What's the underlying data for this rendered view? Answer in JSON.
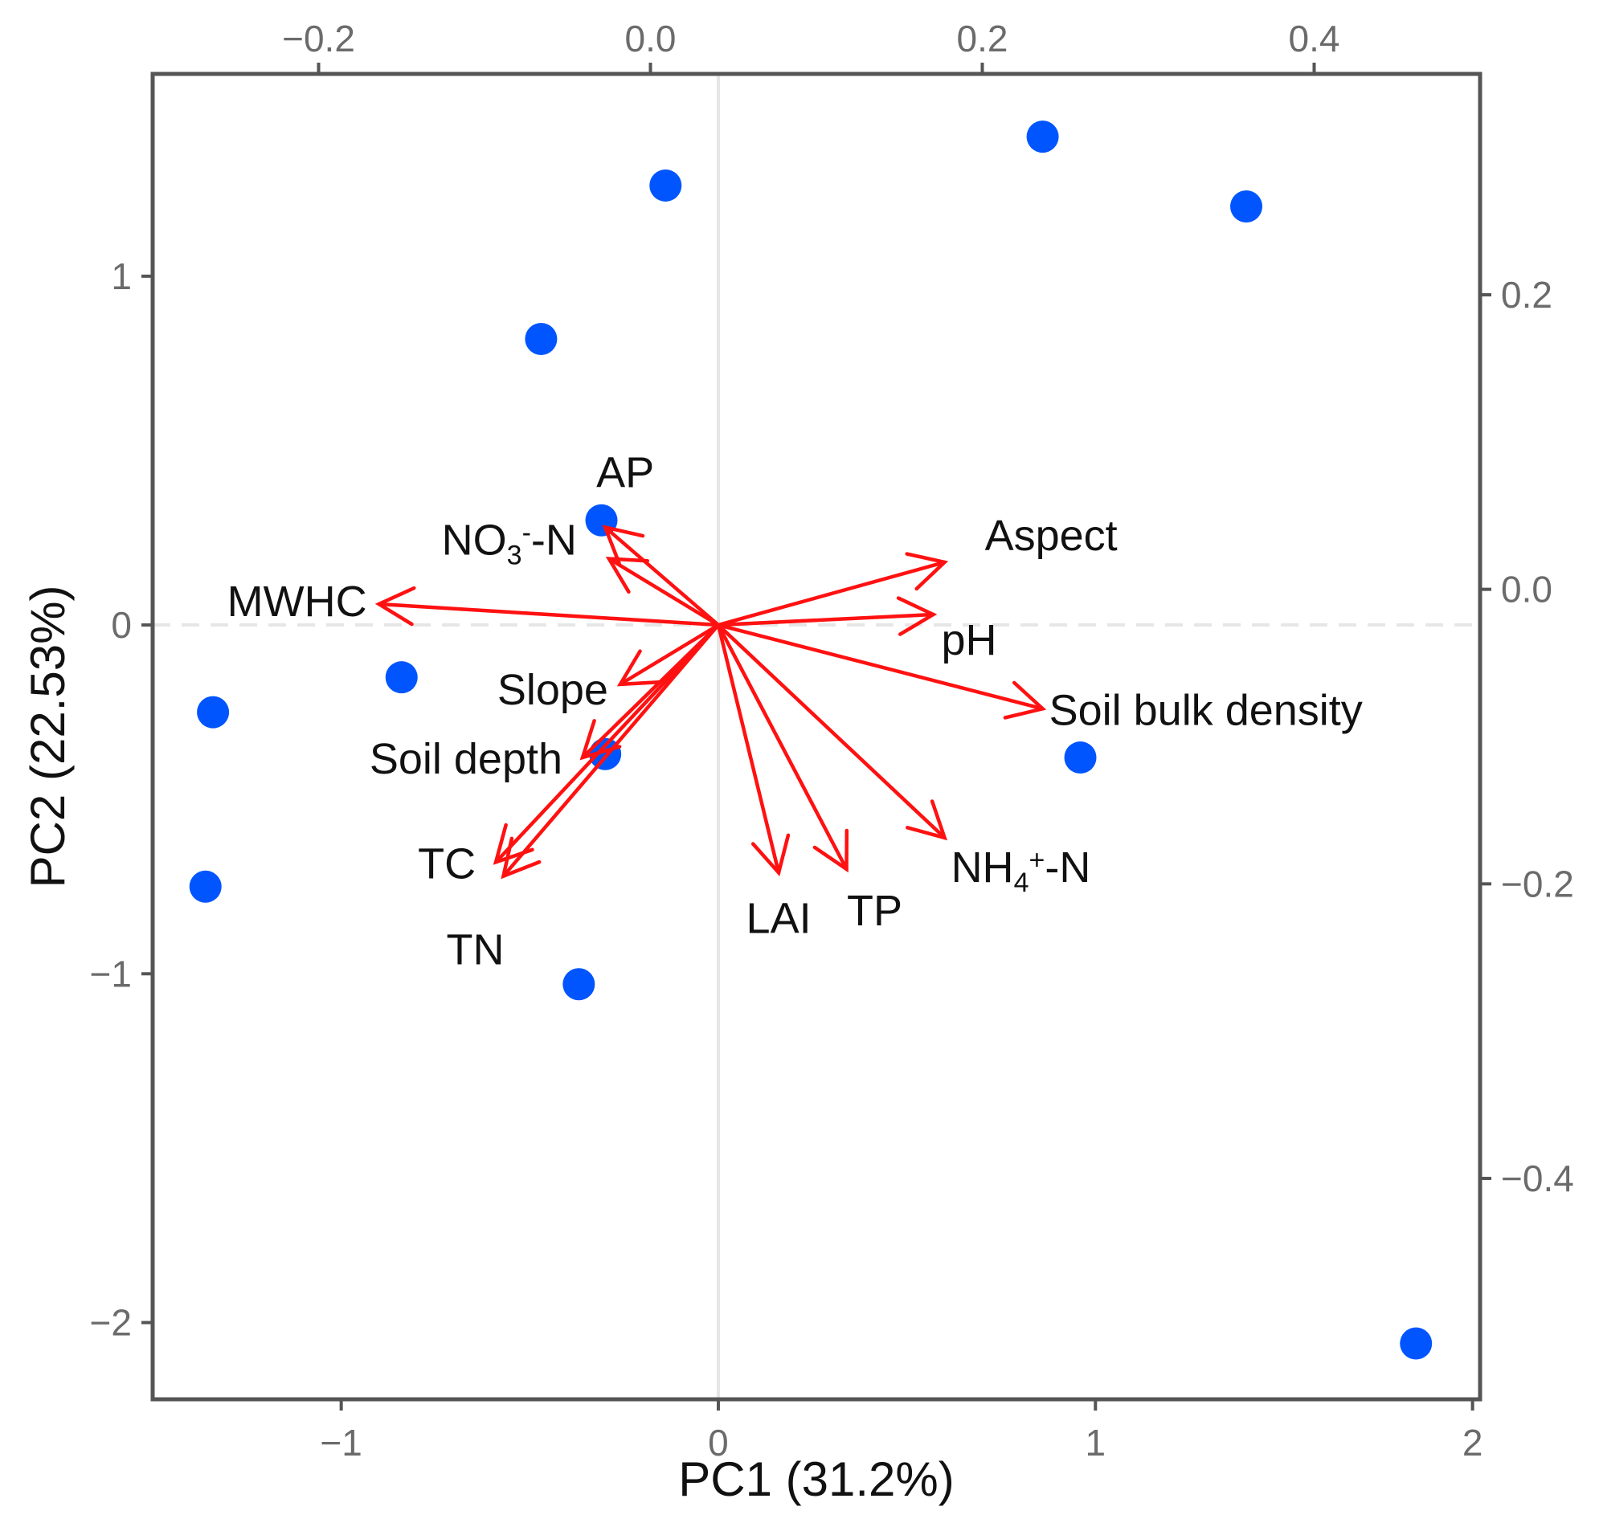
{
  "chart_data": {
    "type": "scatter",
    "subtype": "pca-biplot",
    "title": "",
    "xlabel": "PC1 (31.2%)",
    "ylabel": "PC2 (22.53%)",
    "xlim": [
      -1.5,
      2.02
    ],
    "ylim": [
      -2.22,
      1.58
    ],
    "xticks": [
      {
        "value": -1,
        "label": "−1"
      },
      {
        "value": 0,
        "label": "0"
      },
      {
        "value": 1,
        "label": "1"
      },
      {
        "value": 2,
        "label": "2"
      }
    ],
    "yticks": [
      {
        "value": -2,
        "label": "−2"
      },
      {
        "value": -1,
        "label": "−1"
      },
      {
        "value": 0,
        "label": "0"
      },
      {
        "value": 1,
        "label": "1"
      }
    ],
    "top_axis": {
      "range": [
        -0.3,
        0.5
      ],
      "ticks": [
        {
          "value": -0.2,
          "label": "−0.2"
        },
        {
          "value": 0.0,
          "label": "0.0"
        },
        {
          "value": 0.2,
          "label": "0.2"
        },
        {
          "value": 0.4,
          "label": "0.4"
        }
      ]
    },
    "right_axis": {
      "range": [
        -0.55,
        0.35
      ],
      "ticks": [
        {
          "value": 0.2,
          "label": "0.2"
        },
        {
          "value": 0.0,
          "label": "0.0"
        },
        {
          "value": -0.2,
          "label": "−0.2"
        },
        {
          "value": -0.4,
          "label": "−0.4"
        }
      ]
    },
    "grid": false,
    "reference_lines": {
      "vertical_at_x": 0,
      "horizontal_at_y": 0
    },
    "colors": {
      "points": "#0055ff",
      "arrows": "#ff1111",
      "frame": "#555555",
      "ref_line": "#e6e6e6"
    },
    "points": [
      {
        "x": -0.14,
        "y": 1.26
      },
      {
        "x": 0.86,
        "y": 1.4
      },
      {
        "x": 1.4,
        "y": 1.2
      },
      {
        "x": -0.47,
        "y": 0.82
      },
      {
        "x": -0.31,
        "y": 0.3
      },
      {
        "x": -0.84,
        "y": -0.15
      },
      {
        "x": -1.34,
        "y": -0.25
      },
      {
        "x": -0.3,
        "y": -0.37
      },
      {
        "x": 0.96,
        "y": -0.38
      },
      {
        "x": -1.36,
        "y": -0.75
      },
      {
        "x": -0.37,
        "y": -1.03
      },
      {
        "x": 1.85,
        "y": -2.06
      }
    ],
    "arrows": [
      {
        "label": "AP",
        "x": -0.3,
        "y": 0.28
      },
      {
        "label": "NO3--N",
        "main": "NO",
        "sub": "3",
        "sup": "-",
        "tail": "-N",
        "x": -0.29,
        "y": 0.19
      },
      {
        "label": "MWHC",
        "x": -0.9,
        "y": 0.06
      },
      {
        "label": "Aspect",
        "x": 0.6,
        "y": 0.18
      },
      {
        "label": "pH",
        "x": 0.57,
        "y": 0.03
      },
      {
        "label": "Soil bulk density",
        "x": 0.86,
        "y": -0.24
      },
      {
        "label": "Slope",
        "x": -0.26,
        "y": -0.17
      },
      {
        "label": "Soil depth",
        "x": -0.36,
        "y": -0.38
      },
      {
        "label": "TC",
        "x": -0.59,
        "y": -0.68
      },
      {
        "label": "TN",
        "x": -0.57,
        "y": -0.72
      },
      {
        "label": "LAI",
        "x": 0.16,
        "y": -0.71
      },
      {
        "label": "TP",
        "x": 0.34,
        "y": -0.7
      },
      {
        "label": "NH4+-N",
        "main": "NH",
        "sub": "4",
        "sup": "+",
        "tail": "-N",
        "x": 0.6,
        "y": -0.61
      }
    ]
  }
}
